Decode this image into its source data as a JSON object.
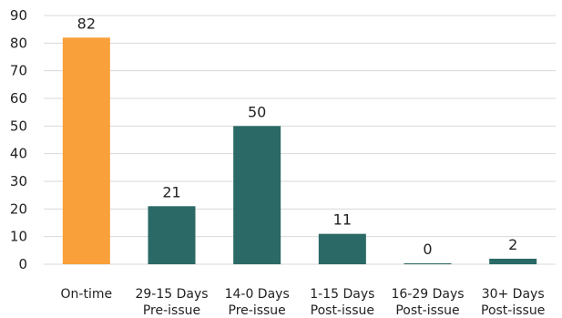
{
  "chart_data": {
    "type": "bar",
    "categories": [
      [
        "On-time"
      ],
      [
        "29-15 Days",
        "Pre-issue"
      ],
      [
        "14-0 Days",
        "Pre-issue"
      ],
      [
        "1-15 Days",
        "Post-issue"
      ],
      [
        "16-29 Days",
        "Post-issue"
      ],
      [
        "30+ Days",
        "Post-issue"
      ]
    ],
    "values": [
      82,
      21,
      50,
      11,
      0,
      2
    ],
    "data_labels": [
      "82",
      "21",
      "50",
      "11",
      "0",
      "2"
    ],
    "bar_colors": [
      "#f9a03a",
      "#2a6966",
      "#2a6966",
      "#2a6966",
      "#2a6966",
      "#2a6966"
    ],
    "title": "",
    "xlabel": "",
    "ylabel": "",
    "ylim": [
      0,
      90
    ],
    "yticks": [
      "0",
      "10",
      "20",
      "30",
      "40",
      "50",
      "60",
      "70",
      "80",
      "90"
    ],
    "grid": true,
    "legend": "none"
  }
}
